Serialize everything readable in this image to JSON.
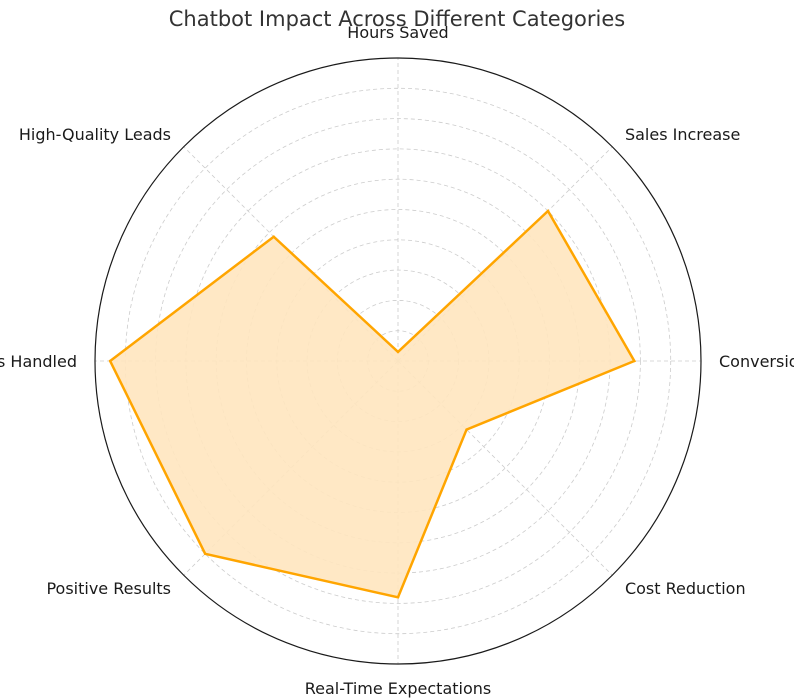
{
  "chart_data": {
    "type": "radar",
    "title": "Chatbot Impact Across Different Categories",
    "categories": [
      "Conversion Rate",
      "Sales Increase",
      "Hours Saved",
      "High-Quality Leads",
      "Queries Handled",
      "Positive Results",
      "Real-Time Expectations",
      "Cost Reduction"
    ],
    "values": [
      78,
      70,
      3,
      58,
      95,
      90,
      78,
      32
    ],
    "rlim": [
      0,
      100
    ],
    "rticks": [
      10,
      20,
      30,
      40,
      50,
      60,
      70,
      80,
      90
    ],
    "grid": true,
    "legend": "none",
    "colors": {
      "line": "#FFA500",
      "fill": "#FFE6BF",
      "grid": "#cccccc",
      "frame": "#1a1a1a"
    }
  }
}
